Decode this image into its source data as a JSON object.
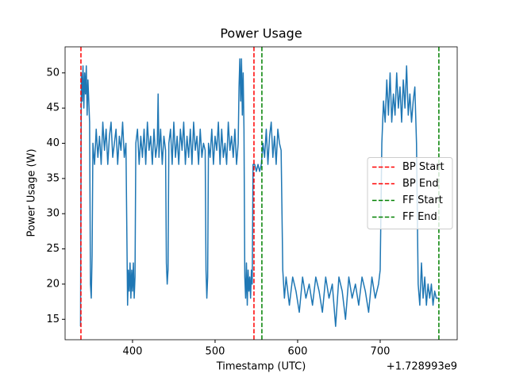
{
  "chart_data": {
    "type": "line",
    "title": "Power Usage",
    "x_label": "Timestamp (UTC)",
    "y_label": "Power Usage (W)",
    "x_offset_label": "+1.728993e9",
    "xlim": [
      318.3,
      793.3
    ],
    "ylim": [
      12.1,
      53.7
    ],
    "xticks": [
      400,
      500,
      600,
      700
    ],
    "yticks": [
      15,
      20,
      25,
      30,
      35,
      40,
      45,
      50
    ],
    "legend_position": "center right",
    "series": [
      {
        "color": "#1f77b4",
        "x": [
          337,
          338,
          339,
          340,
          341,
          342,
          343,
          344,
          345,
          346,
          347,
          348,
          349,
          350,
          351,
          352,
          354,
          356,
          358,
          360,
          362,
          364,
          366,
          368,
          370,
          372,
          374,
          376,
          378,
          380,
          382,
          384,
          386,
          388,
          390,
          392,
          394,
          395,
          396,
          397,
          398,
          399,
          400,
          401,
          402,
          403,
          404,
          406,
          408,
          410,
          412,
          414,
          416,
          418,
          420,
          422,
          424,
          426,
          428,
          430,
          431,
          432,
          434,
          436,
          438,
          440,
          441,
          442,
          443,
          444,
          446,
          448,
          450,
          452,
          454,
          456,
          458,
          460,
          462,
          464,
          466,
          468,
          470,
          472,
          474,
          476,
          478,
          480,
          482,
          484,
          486,
          488,
          489,
          490,
          491,
          492,
          494,
          496,
          498,
          500,
          502,
          504,
          506,
          508,
          510,
          512,
          514,
          516,
          518,
          520,
          522,
          524,
          526,
          528,
          529,
          530,
          531,
          532,
          533,
          534,
          535,
          536,
          537,
          538,
          539,
          540,
          541,
          542,
          543,
          544,
          545,
          546,
          548,
          550,
          552,
          554,
          556,
          558,
          560,
          562,
          564,
          566,
          568,
          570,
          572,
          574,
          576,
          578,
          580,
          582,
          584,
          586,
          590,
          594,
          598,
          602,
          606,
          610,
          614,
          618,
          622,
          626,
          630,
          634,
          638,
          642,
          646,
          650,
          654,
          658,
          662,
          666,
          670,
          674,
          678,
          682,
          686,
          690,
          694,
          698,
          700,
          702,
          704,
          706,
          708,
          710,
          712,
          714,
          716,
          718,
          720,
          722,
          724,
          726,
          728,
          730,
          732,
          734,
          736,
          738,
          740,
          742,
          744,
          746,
          748,
          750,
          752,
          754,
          756,
          758,
          760,
          762,
          764,
          766,
          768,
          770,
          771
        ],
        "values": [
          14,
          50,
          46,
          51,
          45,
          50,
          47,
          51,
          44,
          49,
          46,
          43,
          20,
          18,
          24,
          40,
          37,
          42,
          38,
          41,
          37,
          43,
          39,
          42,
          37,
          41,
          43,
          38,
          40,
          42,
          37,
          41,
          39,
          43,
          38,
          40,
          17,
          22,
          19,
          23,
          18,
          22,
          19,
          23,
          18,
          21,
          40,
          42,
          37,
          41,
          38,
          42,
          37,
          43,
          39,
          41,
          37,
          42,
          38,
          40,
          47,
          38,
          42,
          37,
          41,
          39,
          23,
          20,
          22,
          40,
          42,
          37,
          43,
          38,
          41,
          37,
          42,
          39,
          43,
          37,
          41,
          38,
          42,
          37,
          43,
          39,
          41,
          37,
          42,
          38,
          40,
          39,
          22,
          18,
          21,
          40,
          38,
          42,
          37,
          41,
          39,
          43,
          37,
          42,
          38,
          40,
          37,
          43,
          39,
          41,
          38,
          42,
          37,
          40,
          48,
          52,
          46,
          52,
          44,
          50,
          42,
          21,
          18,
          23,
          17,
          22,
          19,
          21,
          18,
          22,
          20,
          37,
          37,
          36,
          37,
          36,
          37,
          40,
          38,
          42,
          37,
          41,
          43,
          38,
          41,
          37,
          42,
          40,
          39,
          22,
          18,
          21,
          17,
          21,
          19,
          16,
          21,
          18,
          20,
          17,
          21,
          19,
          16,
          21,
          18,
          20,
          14,
          21,
          19,
          15,
          21,
          18,
          20,
          17,
          21,
          19,
          16,
          21,
          18,
          20,
          22,
          40,
          46,
          43,
          49,
          44,
          50,
          43,
          47,
          44,
          50,
          45,
          48,
          43,
          49,
          45,
          51,
          44,
          47,
          43,
          46,
          48,
          40,
          20,
          17,
          23,
          18,
          21,
          17,
          20,
          18,
          20,
          17,
          19,
          18,
          18,
          18
        ]
      }
    ],
    "vlines": [
      {
        "name": "BP Start",
        "x": 337.5,
        "color": "#ff0000"
      },
      {
        "name": "BP End",
        "x": 547.1,
        "color": "#ff0000"
      },
      {
        "name": "FF Start",
        "x": 556.7,
        "color": "#008000"
      },
      {
        "name": "FF End",
        "x": 771.1,
        "color": "#008000"
      }
    ]
  }
}
